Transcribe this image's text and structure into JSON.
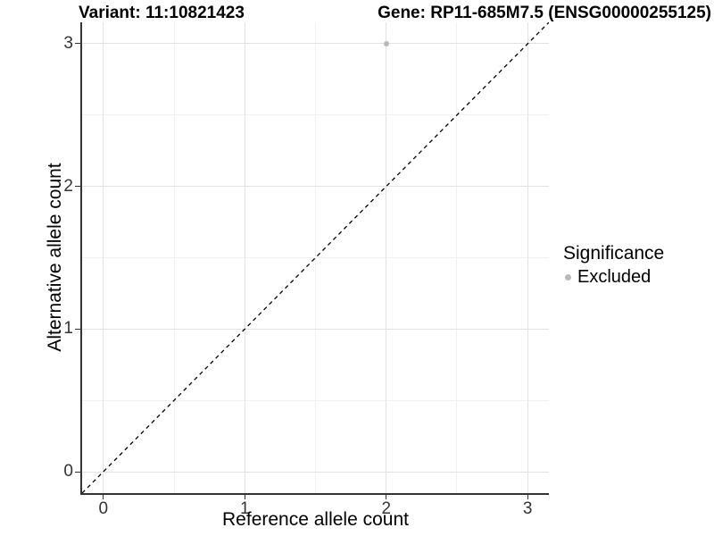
{
  "header": {
    "variant_title": "Variant: 11:10821423",
    "gene_title": "Gene: RP11-685M7.5 (ENSG00000255125)"
  },
  "chart_data": {
    "type": "scatter",
    "xlabel": "Reference allele count",
    "ylabel": "Alternative allele count",
    "xlim": [
      -0.15,
      3.15
    ],
    "ylim": [
      -0.15,
      3.15
    ],
    "x_ticks": [
      0,
      1,
      2,
      3
    ],
    "y_ticks": [
      0,
      1,
      2,
      3
    ],
    "x_minor_ticks": [
      0.5,
      1.5,
      2.5
    ],
    "y_minor_ticks": [
      0.5,
      1.5,
      2.5
    ],
    "grid": "on",
    "identity_line": {
      "style": "dashed",
      "from": [
        -0.15,
        -0.15
      ],
      "to": [
        3.15,
        3.15
      ],
      "color": "#000000"
    },
    "series": [
      {
        "name": "Excluded",
        "color": "#b9b9b9",
        "points": [
          {
            "x": 2,
            "y": 3
          }
        ]
      }
    ],
    "legend": {
      "title": "Significance",
      "position": "right",
      "items": [
        {
          "label": "Excluded",
          "color": "#b9b9b9"
        }
      ]
    }
  },
  "colors": {
    "background": "#ffffff",
    "axis_line": "#333333",
    "tick_mark": "#333333",
    "tick_label": "#333333",
    "grid_major": "#e2e2e2",
    "grid_minor": "#f1f1f1"
  }
}
